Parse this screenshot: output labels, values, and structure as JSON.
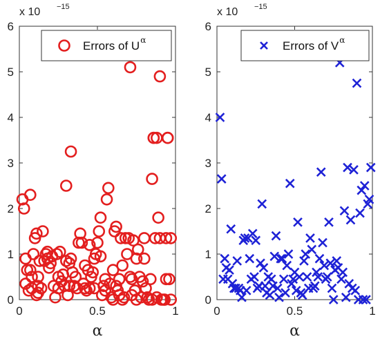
{
  "chart_data": [
    {
      "type": "scatter",
      "xlabel": "α",
      "ylabel": "",
      "xlim": [
        0,
        1
      ],
      "ylim": [
        0,
        6
      ],
      "xticks": [
        "0",
        "0.5",
        "1"
      ],
      "yticks": [
        "0",
        "1",
        "2",
        "3",
        "4",
        "5",
        "6"
      ],
      "y_multiplier": {
        "base": "x 10",
        "exponent": "−15"
      },
      "legend": {
        "text": "Errors of U",
        "sup": "α",
        "position": "top-right"
      },
      "marker": "circle",
      "color": "#e31e1e",
      "series": [
        {
          "name": "Errors of Uα",
          "x": [
            0.02,
            0.03,
            0.04,
            0.07,
            0.07,
            0.05,
            0.06,
            0.04,
            0.09,
            0.08,
            0.1,
            0.11,
            0.12,
            0.13,
            0.12,
            0.11,
            0.14,
            0.15,
            0.16,
            0.17,
            0.18,
            0.19,
            0.2,
            0.21,
            0.22,
            0.23,
            0.24,
            0.25,
            0.26,
            0.27,
            0.28,
            0.29,
            0.3,
            0.31,
            0.32,
            0.33,
            0.34,
            0.35,
            0.36,
            0.37,
            0.38,
            0.39,
            0.4,
            0.41,
            0.42,
            0.43,
            0.44,
            0.45,
            0.46,
            0.47,
            0.48,
            0.49,
            0.5,
            0.51,
            0.52,
            0.53,
            0.54,
            0.55,
            0.56,
            0.57,
            0.58,
            0.59,
            0.6,
            0.61,
            0.62,
            0.63,
            0.64,
            0.65,
            0.66,
            0.67,
            0.68,
            0.69,
            0.7,
            0.71,
            0.72,
            0.73,
            0.74,
            0.75,
            0.76,
            0.77,
            0.78,
            0.79,
            0.8,
            0.81,
            0.82,
            0.83,
            0.84,
            0.85,
            0.86,
            0.87,
            0.88,
            0.89,
            0.9,
            0.91,
            0.92,
            0.93,
            0.94,
            0.95,
            0.96,
            0.97,
            0.25,
            0.32,
            0.18,
            0.3,
            0.45,
            0.08,
            0.6,
            0.71,
            0.86,
            0.88,
            0.9,
            0.93,
            0.94,
            0.52,
            0.55,
            0.64,
            0.75,
            0.8,
            0.85,
            0.95,
            0.97,
            0.62,
            0.66,
            0.72,
            0.33,
            0.42,
            0.48,
            0.12
          ],
          "y": [
            2.2,
            2.0,
            0.9,
            2.3,
            0.65,
            0.65,
            0.2,
            0.35,
            1.0,
            0.5,
            1.35,
            1.45,
            0.5,
            0.85,
            0.3,
            0.1,
            0.25,
            1.5,
            0.85,
            1.0,
            0.9,
            0.7,
            0.8,
            0.95,
            0.3,
            0.05,
            1.0,
            0.25,
            1.05,
            0.4,
            0.55,
            0.3,
            2.5,
            0.1,
            0.8,
            3.25,
            0.6,
            0.3,
            0.5,
            0.25,
            1.25,
            1.45,
            1.25,
            0.35,
            0.75,
            0.2,
            0.65,
            0.25,
            0.5,
            0.6,
            0.9,
            1.0,
            1.25,
            1.5,
            1.8,
            0.1,
            0.3,
            0.45,
            2.2,
            2.45,
            0.35,
            0.05,
            0.65,
            1.5,
            0.3,
            0.2,
            0.1,
            1.35,
            0.75,
            0.05,
            1.35,
            1.0,
            1.35,
            0.5,
            0.1,
            1.3,
            0.2,
            0.9,
            1.1,
            0.5,
            0.05,
            0.4,
            1.35,
            0.25,
            0.05,
            0.0,
            0.45,
            2.65,
            3.55,
            1.35,
            0.05,
            1.8,
            4.9,
            0.0,
            0.0,
            0.0,
            1.35,
            3.55,
            0.45,
            1.35,
            0.5,
            0.3,
            1.05,
            0.85,
            1.2,
            0.25,
            0.0,
            5.1,
            3.55,
            3.55,
            1.35,
            0.0,
            0.45,
            0.95,
            0.2,
            0.45,
            0.0,
            0.9,
            0.0,
            3.55,
            0.0,
            1.6,
            0.0,
            0.45,
            0.9,
            0.25,
            0.25,
            0.15
          ]
        }
      ]
    },
    {
      "type": "scatter",
      "xlabel": "α",
      "ylabel": "",
      "xlim": [
        0,
        1
      ],
      "ylim": [
        0,
        6
      ],
      "xticks": [
        "0",
        "0.5",
        "1"
      ],
      "yticks": [
        "0",
        "1",
        "2",
        "3",
        "4",
        "5",
        "6"
      ],
      "y_multiplier": {
        "base": "x 10",
        "exponent": "−15"
      },
      "legend": {
        "text": "Errors of V",
        "sup": "α",
        "position": "top-right"
      },
      "marker": "x",
      "color": "#1e22d6",
      "series": [
        {
          "name": "Errors of Vα",
          "x": [
            0.02,
            0.03,
            0.04,
            0.05,
            0.06,
            0.07,
            0.08,
            0.09,
            0.1,
            0.11,
            0.12,
            0.13,
            0.14,
            0.15,
            0.16,
            0.17,
            0.18,
            0.19,
            0.2,
            0.21,
            0.22,
            0.23,
            0.24,
            0.25,
            0.26,
            0.27,
            0.28,
            0.29,
            0.3,
            0.31,
            0.32,
            0.33,
            0.34,
            0.35,
            0.36,
            0.37,
            0.38,
            0.39,
            0.4,
            0.41,
            0.42,
            0.43,
            0.44,
            0.45,
            0.46,
            0.47,
            0.48,
            0.49,
            0.5,
            0.51,
            0.52,
            0.53,
            0.54,
            0.55,
            0.56,
            0.57,
            0.58,
            0.59,
            0.6,
            0.61,
            0.62,
            0.63,
            0.64,
            0.65,
            0.66,
            0.67,
            0.68,
            0.69,
            0.7,
            0.71,
            0.72,
            0.73,
            0.74,
            0.75,
            0.76,
            0.77,
            0.78,
            0.79,
            0.8,
            0.81,
            0.82,
            0.83,
            0.84,
            0.85,
            0.86,
            0.87,
            0.88,
            0.89,
            0.9,
            0.91,
            0.92,
            0.93,
            0.94,
            0.95,
            0.96,
            0.97,
            0.98,
            0.99
          ],
          "y": [
            4.0,
            2.65,
            0.45,
            0.9,
            0.7,
            0.45,
            0.65,
            1.55,
            0.35,
            0.25,
            0.25,
            0.85,
            0.25,
            0.2,
            0.05,
            1.3,
            1.35,
            0.2,
            1.35,
            0.9,
            0.45,
            1.45,
            0.5,
            1.3,
            0.25,
            0.3,
            0.8,
            2.1,
            0.7,
            0.3,
            0.15,
            0.5,
            0.1,
            0.45,
            0.3,
            0.95,
            1.4,
            0.25,
            0.05,
            0.9,
            0.9,
            0.45,
            0.15,
            0.75,
            1.0,
            2.55,
            0.35,
            0.45,
            0.6,
            0.2,
            1.7,
            0.5,
            0.15,
            0.1,
            0.85,
            1.0,
            0.5,
            0.25,
            1.35,
            1.1,
            0.25,
            0.3,
            0.6,
            0.5,
            0.9,
            2.8,
            1.25,
            0.75,
            0.45,
            0.5,
            1.7,
            0.8,
            0.25,
            0.0,
            0.65,
            0.85,
            0.7,
            5.2,
            0.45,
            0.6,
            1.95,
            0.05,
            2.9,
            0.35,
            1.75,
            0.25,
            2.85,
            0.2,
            4.75,
            0.0,
            1.9,
            2.4,
            0.0,
            2.5,
            0.0,
            2.1,
            2.2,
            2.9
          ]
        }
      ]
    }
  ]
}
